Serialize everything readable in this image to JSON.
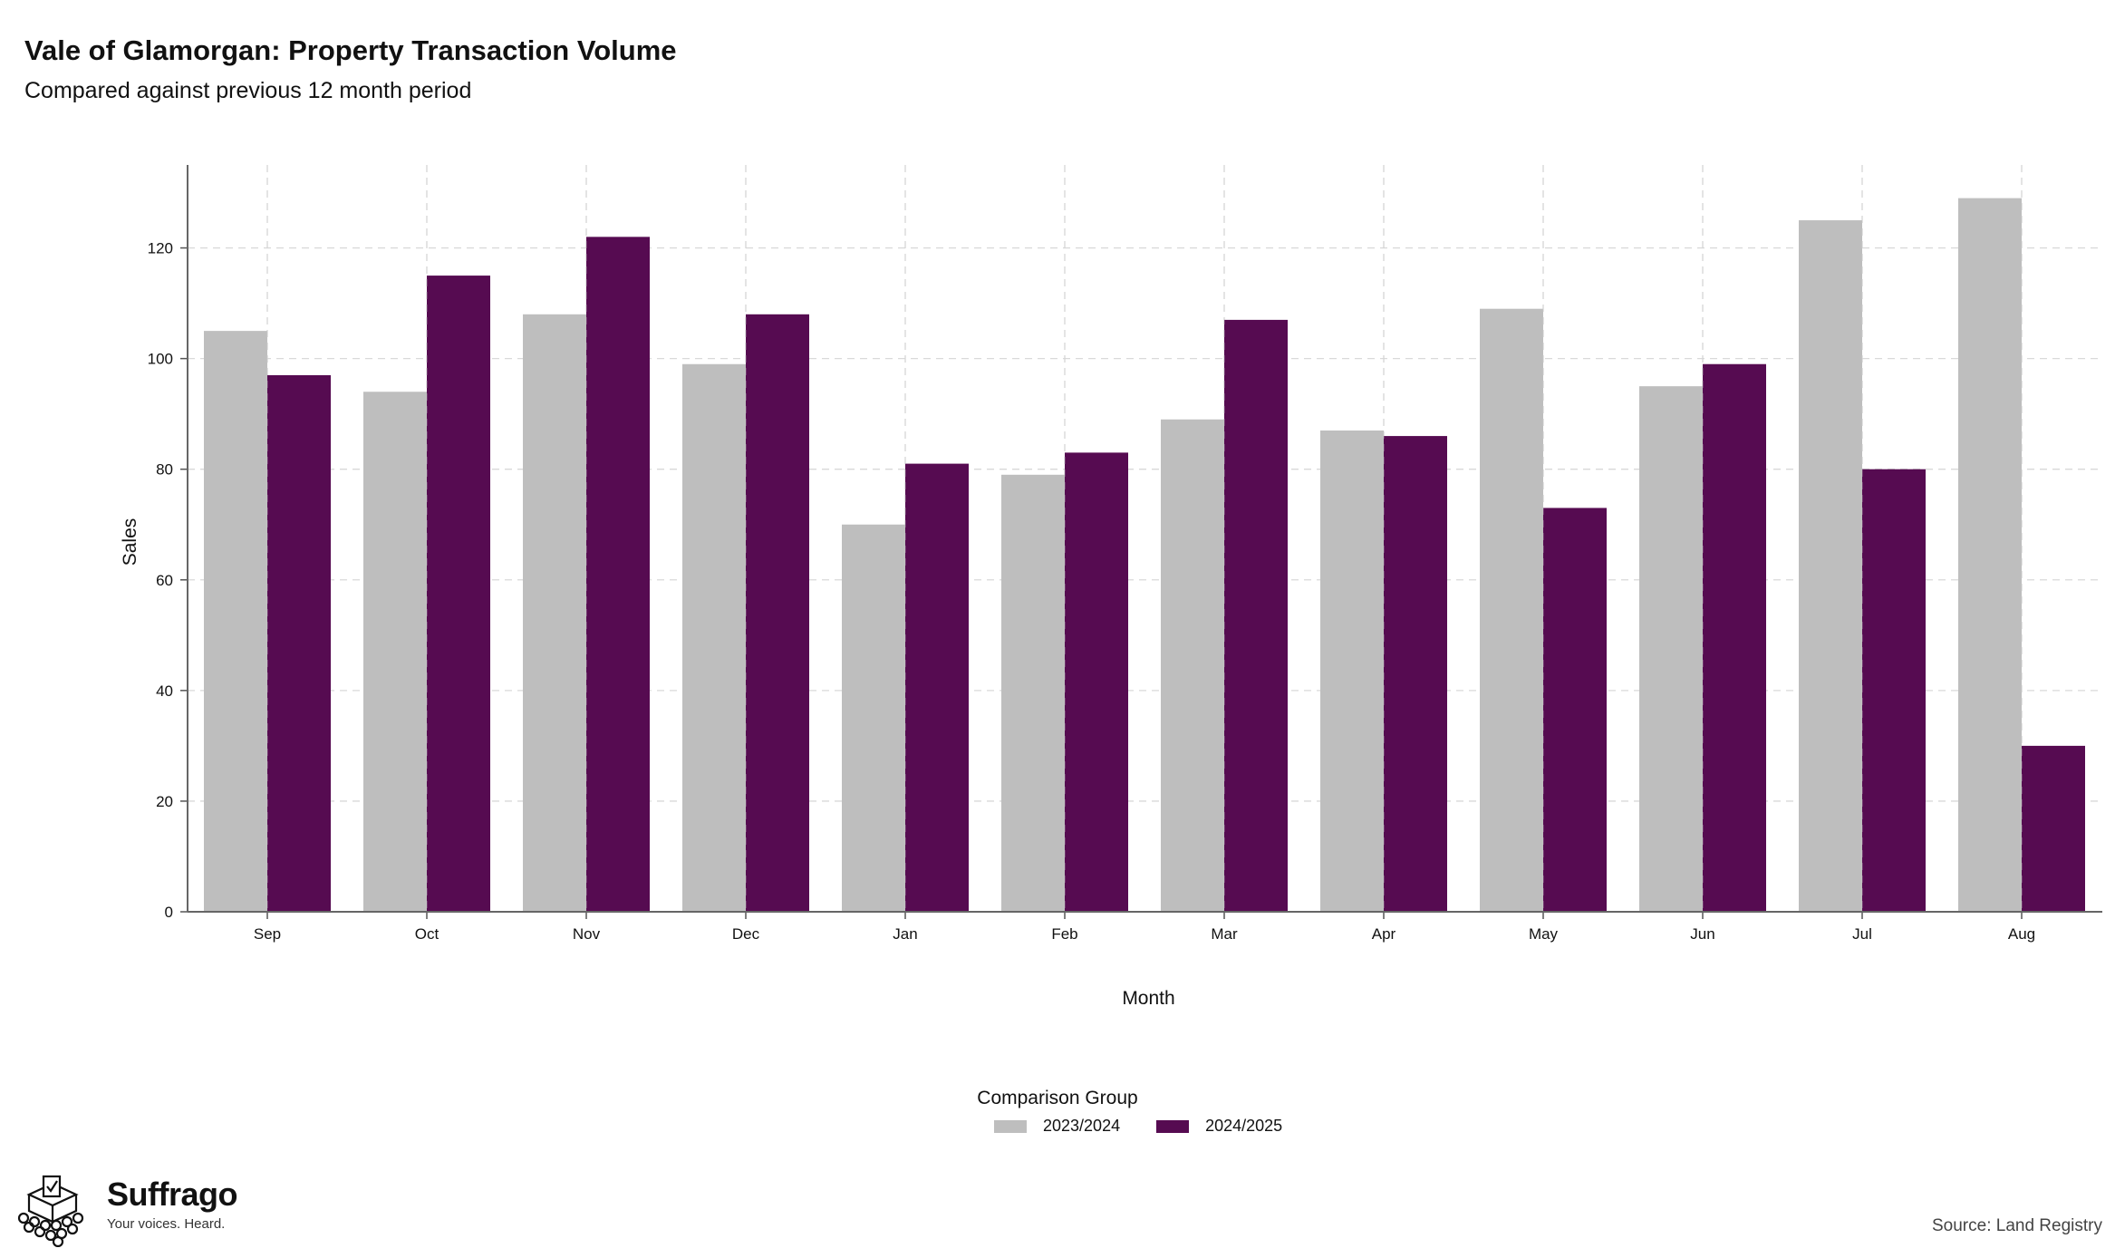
{
  "header": {
    "title": "Vale of Glamorgan: Property Transaction Volume",
    "subtitle": "Compared against previous 12 month period"
  },
  "legend": {
    "title": "Comparison Group",
    "items": [
      {
        "label": "2023/2024",
        "color": "#bebebe"
      },
      {
        "label": "2024/2025",
        "color": "#560b51"
      }
    ]
  },
  "footer": {
    "brand": "Suffrago",
    "tagline": "Your voices. Heard.",
    "source": "Source: Land Registry"
  },
  "chart_data": {
    "type": "bar",
    "xlabel": "Month",
    "ylabel": "Sales",
    "categories": [
      "Sep",
      "Oct",
      "Nov",
      "Dec",
      "Jan",
      "Feb",
      "Mar",
      "Apr",
      "May",
      "Jun",
      "Jul",
      "Aug"
    ],
    "series": [
      {
        "name": "2023/2024",
        "color": "#bebebe",
        "values": [
          105,
          94,
          108,
          99,
          70,
          79,
          89,
          87,
          109,
          95,
          125,
          129
        ]
      },
      {
        "name": "2024/2025",
        "color": "#560b51",
        "values": [
          97,
          115,
          122,
          108,
          81,
          83,
          107,
          86,
          73,
          99,
          80,
          30
        ]
      }
    ],
    "ylim": [
      0,
      135
    ],
    "yticks": [
      0,
      20,
      40,
      60,
      80,
      100,
      120
    ],
    "grid": true,
    "legend_position": "bottom"
  }
}
